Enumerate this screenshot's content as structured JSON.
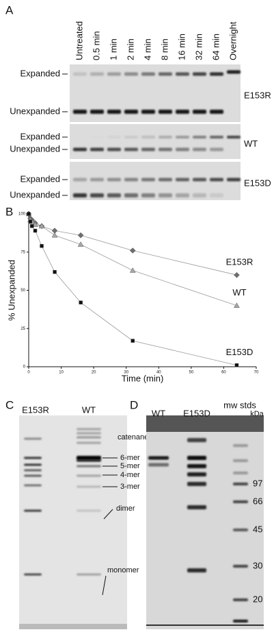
{
  "panel_a": {
    "label": "A",
    "lanes": [
      "Untreated",
      "0.5 min",
      "1 min",
      "2 min",
      "4 min",
      "8 min",
      "16 min",
      "32 min",
      "64 min",
      "Overnight"
    ],
    "gels": [
      {
        "name": "E153R",
        "bands": [
          "Expanded",
          "Unexpanded"
        ]
      },
      {
        "name": "WT",
        "bands": [
          "Expanded",
          "Unexpanded"
        ]
      },
      {
        "name": "E153D",
        "bands": [
          "Expanded",
          "Unexpanded"
        ]
      }
    ]
  },
  "chart_data": {
    "type": "scatter",
    "label": "B",
    "xlabel": "Time (min)",
    "ylabel": "% Unexpanded",
    "x": [
      0,
      0.5,
      1,
      2,
      4,
      8,
      16,
      32,
      64
    ],
    "series": [
      {
        "name": "E153R",
        "color": "#6e6e6e",
        "marker": "diamond",
        "values": [
          100,
          97,
          96,
          94,
          92,
          89,
          86,
          76,
          60
        ]
      },
      {
        "name": "WT",
        "color": "#a6a6a6",
        "marker": "triangle",
        "values": [
          100,
          96,
          95,
          93,
          92,
          86,
          80,
          63,
          40
        ]
      },
      {
        "name": "E153D",
        "color": "#111111",
        "marker": "square",
        "values": [
          100,
          95,
          92,
          89,
          79,
          62,
          42,
          17,
          1
        ]
      }
    ],
    "xlim": [
      0,
      70
    ],
    "xticks": [
      0,
      10,
      20,
      30,
      40,
      50,
      60,
      70
    ],
    "ylim": [
      0,
      100
    ],
    "yticks": [
      0,
      25,
      50,
      75,
      100
    ]
  },
  "panel_c": {
    "label": "C",
    "lanes": [
      "E153R",
      "WT"
    ],
    "annotations": [
      "catenanes",
      "6-mer",
      "5-mer",
      "4-mer",
      "3-mer",
      "dimer",
      "monomer"
    ]
  },
  "panel_d": {
    "label": "D",
    "lanes": [
      "WT",
      "E153D"
    ],
    "std_label": "mw stds",
    "unit": "kDa",
    "markers": [
      "97",
      "66",
      "45",
      "30",
      "20"
    ]
  }
}
